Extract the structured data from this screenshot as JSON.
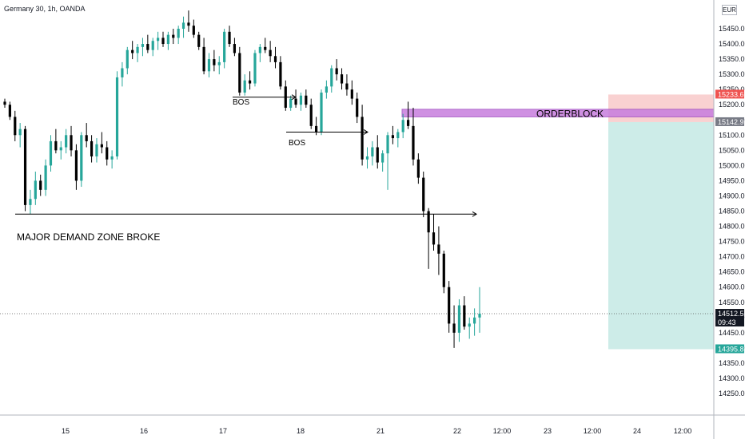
{
  "header": {
    "title": "Germany 30, 1h, OANDA",
    "currency": "EUR"
  },
  "colors": {
    "up": "#26a69a",
    "down": "#000000",
    "orderblock": "#c77dde",
    "stop_zone": "#f8c9c9",
    "target_zone": "#cdece8"
  },
  "chart_data": {
    "type": "candlestick",
    "ylim": [
      14250,
      15600
    ],
    "y_ticks": [
      14250,
      14300,
      14350,
      14400,
      14450,
      14500,
      14550,
      14600,
      14650,
      14700,
      14750,
      14800,
      14850,
      14900,
      14950,
      15000,
      15050,
      15100,
      15150,
      15200,
      15250,
      15300,
      15350,
      15400,
      15450
    ],
    "y_tick_labels": [
      "14250.0",
      "14300.0",
      "14350.0",
      "14400.0",
      "14450.0",
      "14500.0",
      "14550.0",
      "14600.0",
      "14650.0",
      "14700.0",
      "14750.0",
      "14800.0",
      "14850.0",
      "14900.0",
      "14950.0",
      "15000.0",
      "15050.0",
      "15100.0",
      "15150.0",
      "15200.0",
      "15250.0",
      "15300.0",
      "15350.0",
      "15400.0",
      "15450.0"
    ],
    "x_ticks": [
      "15",
      "16",
      "17",
      "18",
      "21",
      "22",
      "12:00",
      "23",
      "12:00",
      "24",
      "12:00"
    ],
    "price_labels": {
      "stop": {
        "text": "15233.6",
        "value": 15233.6
      },
      "entry": {
        "text": "15142.9",
        "value": 15142.9
      },
      "current": {
        "text": "14512.5",
        "value": 14512.5,
        "timer": "09:43"
      },
      "target": {
        "text": "14395.8",
        "value": 14395.8
      }
    },
    "orderblock": {
      "label": "ORDERBLOCK",
      "high": 15185,
      "low": 15160
    },
    "position": {
      "stop": 15233.6,
      "entry": 15142.9,
      "target": 14395.8
    },
    "annotations": [
      {
        "text": "BOS",
        "level": 15225
      },
      {
        "text": "BOS",
        "level": 15110
      },
      {
        "text": "MAJOR DEMAND ZONE BROKE",
        "level": 14840
      }
    ],
    "candles": [
      [
        15210,
        15220,
        15190,
        15200
      ],
      [
        15200,
        15210,
        15150,
        15160
      ],
      [
        15160,
        15180,
        15080,
        15100
      ],
      [
        15100,
        15140,
        15060,
        15120
      ],
      [
        15120,
        15130,
        14850,
        14870
      ],
      [
        14870,
        14920,
        14840,
        14890
      ],
      [
        14890,
        14980,
        14870,
        14950
      ],
      [
        14950,
        14970,
        14900,
        14920
      ],
      [
        14920,
        15020,
        14900,
        15000
      ],
      [
        15000,
        15100,
        14980,
        15080
      ],
      [
        15080,
        15120,
        15040,
        15050
      ],
      [
        15050,
        15080,
        15020,
        15060
      ],
      [
        15060,
        15120,
        15040,
        15100
      ],
      [
        15100,
        15130,
        15030,
        15050
      ],
      [
        15050,
        15070,
        14920,
        14950
      ],
      [
        14950,
        15110,
        14930,
        15100
      ],
      [
        15100,
        15140,
        15060,
        15080
      ],
      [
        15080,
        15100,
        15010,
        15030
      ],
      [
        15030,
        15090,
        15010,
        15070
      ],
      [
        15070,
        15110,
        15040,
        15060
      ],
      [
        15060,
        15080,
        15000,
        15020
      ],
      [
        15020,
        15050,
        14990,
        15030
      ],
      [
        15030,
        15310,
        15020,
        15290
      ],
      [
        15290,
        15340,
        15260,
        15320
      ],
      [
        15320,
        15390,
        15300,
        15380
      ],
      [
        15380,
        15410,
        15350,
        15370
      ],
      [
        15370,
        15400,
        15340,
        15390
      ],
      [
        15390,
        15420,
        15360,
        15400
      ],
      [
        15400,
        15430,
        15370,
        15380
      ],
      [
        15380,
        15420,
        15360,
        15410
      ],
      [
        15410,
        15440,
        15380,
        15420
      ],
      [
        15420,
        15440,
        15390,
        15400
      ],
      [
        15400,
        15440,
        15380,
        15430
      ],
      [
        15430,
        15450,
        15400,
        15420
      ],
      [
        15420,
        15460,
        15400,
        15450
      ],
      [
        15450,
        15490,
        15420,
        15470
      ],
      [
        15470,
        15510,
        15440,
        15460
      ],
      [
        15460,
        15480,
        15420,
        15430
      ],
      [
        15430,
        15440,
        15380,
        15390
      ],
      [
        15390,
        15420,
        15300,
        15310
      ],
      [
        15310,
        15370,
        15290,
        15350
      ],
      [
        15350,
        15380,
        15310,
        15330
      ],
      [
        15330,
        15360,
        15300,
        15340
      ],
      [
        15340,
        15450,
        15320,
        15440
      ],
      [
        15440,
        15460,
        15390,
        15400
      ],
      [
        15400,
        15420,
        15360,
        15370
      ],
      [
        15370,
        15390,
        15230,
        15240
      ],
      [
        15240,
        15300,
        15230,
        15280
      ],
      [
        15280,
        15310,
        15250,
        15270
      ],
      [
        15270,
        15380,
        15260,
        15370
      ],
      [
        15370,
        15400,
        15340,
        15390
      ],
      [
        15390,
        15420,
        15370,
        15380
      ],
      [
        15380,
        15410,
        15340,
        15360
      ],
      [
        15360,
        15390,
        15320,
        15340
      ],
      [
        15340,
        15360,
        15250,
        15260
      ],
      [
        15260,
        15280,
        15180,
        15190
      ],
      [
        15190,
        15230,
        15180,
        15220
      ],
      [
        15220,
        15250,
        15190,
        15200
      ],
      [
        15200,
        15240,
        15180,
        15230
      ],
      [
        15230,
        15250,
        15190,
        15200
      ],
      [
        15200,
        15220,
        15120,
        15130
      ],
      [
        15130,
        15160,
        15100,
        15110
      ],
      [
        15110,
        15250,
        15100,
        15240
      ],
      [
        15240,
        15280,
        15220,
        15260
      ],
      [
        15260,
        15330,
        15240,
        15320
      ],
      [
        15320,
        15350,
        15280,
        15300
      ],
      [
        15300,
        15320,
        15250,
        15270
      ],
      [
        15270,
        15300,
        15230,
        15250
      ],
      [
        15250,
        15280,
        15200,
        15220
      ],
      [
        15220,
        15240,
        15140,
        15160
      ],
      [
        15160,
        15200,
        15000,
        15020
      ],
      [
        15020,
        15060,
        14990,
        15030
      ],
      [
        15030,
        15080,
        15000,
        15060
      ],
      [
        15060,
        15100,
        14990,
        15010
      ],
      [
        15010,
        15050,
        14980,
        15040
      ],
      [
        15040,
        15110,
        14920,
        15100
      ],
      [
        15100,
        15130,
        15070,
        15090
      ],
      [
        15090,
        15120,
        15060,
        15110
      ],
      [
        15110,
        15170,
        15090,
        15150
      ],
      [
        15150,
        15210,
        15120,
        15130
      ],
      [
        15130,
        15190,
        15000,
        15020
      ],
      [
        15020,
        15040,
        14940,
        14960
      ],
      [
        14960,
        14980,
        14830,
        14850
      ],
      [
        14850,
        14860,
        14660,
        14780
      ],
      [
        14780,
        14840,
        14720,
        14740
      ],
      [
        14740,
        14800,
        14640,
        14710
      ],
      [
        14710,
        14720,
        14580,
        14600
      ],
      [
        14600,
        14620,
        14450,
        14480
      ],
      [
        14480,
        14540,
        14400,
        14450
      ],
      [
        14450,
        14560,
        14420,
        14540
      ],
      [
        14540,
        14570,
        14460,
        14470
      ],
      [
        14470,
        14500,
        14430,
        14480
      ],
      [
        14480,
        14530,
        14440,
        14500
      ],
      [
        14500,
        14600,
        14450,
        14512.5
      ]
    ]
  }
}
